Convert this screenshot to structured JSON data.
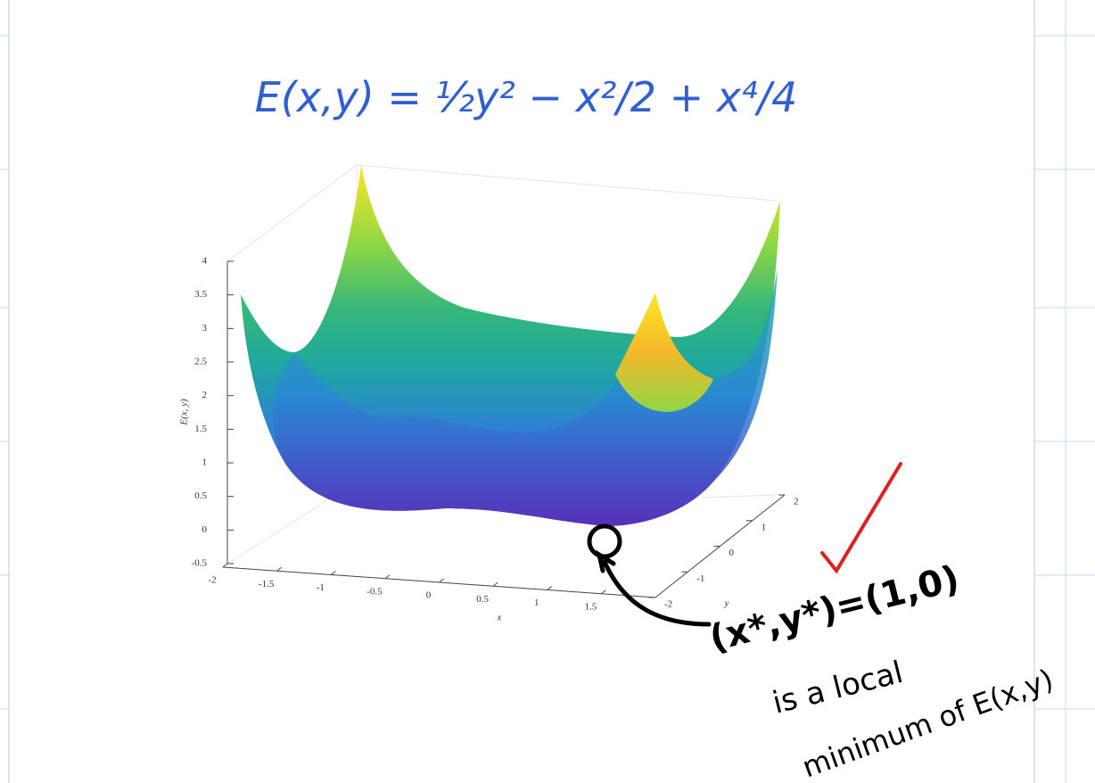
{
  "equation": "E(x,y) = ½y² − x²/2 + x⁴/4",
  "plot": {
    "z_label": "E(x, y)",
    "x_label": "x",
    "y_label": "y",
    "z_ticks": [
      -0.5,
      0,
      0.5,
      1,
      1.5,
      2,
      2.5,
      3,
      3.5,
      4
    ],
    "x_ticks": [
      -2,
      -1.5,
      -1,
      -0.5,
      0,
      0.5,
      1,
      1.5
    ],
    "y_ticks": [
      -2,
      -1,
      0,
      1,
      2
    ]
  },
  "annotation": {
    "point": "(x*,y*)=(1,0)",
    "line1": "is a local",
    "line2": "minimum of E(x,y)"
  }
}
